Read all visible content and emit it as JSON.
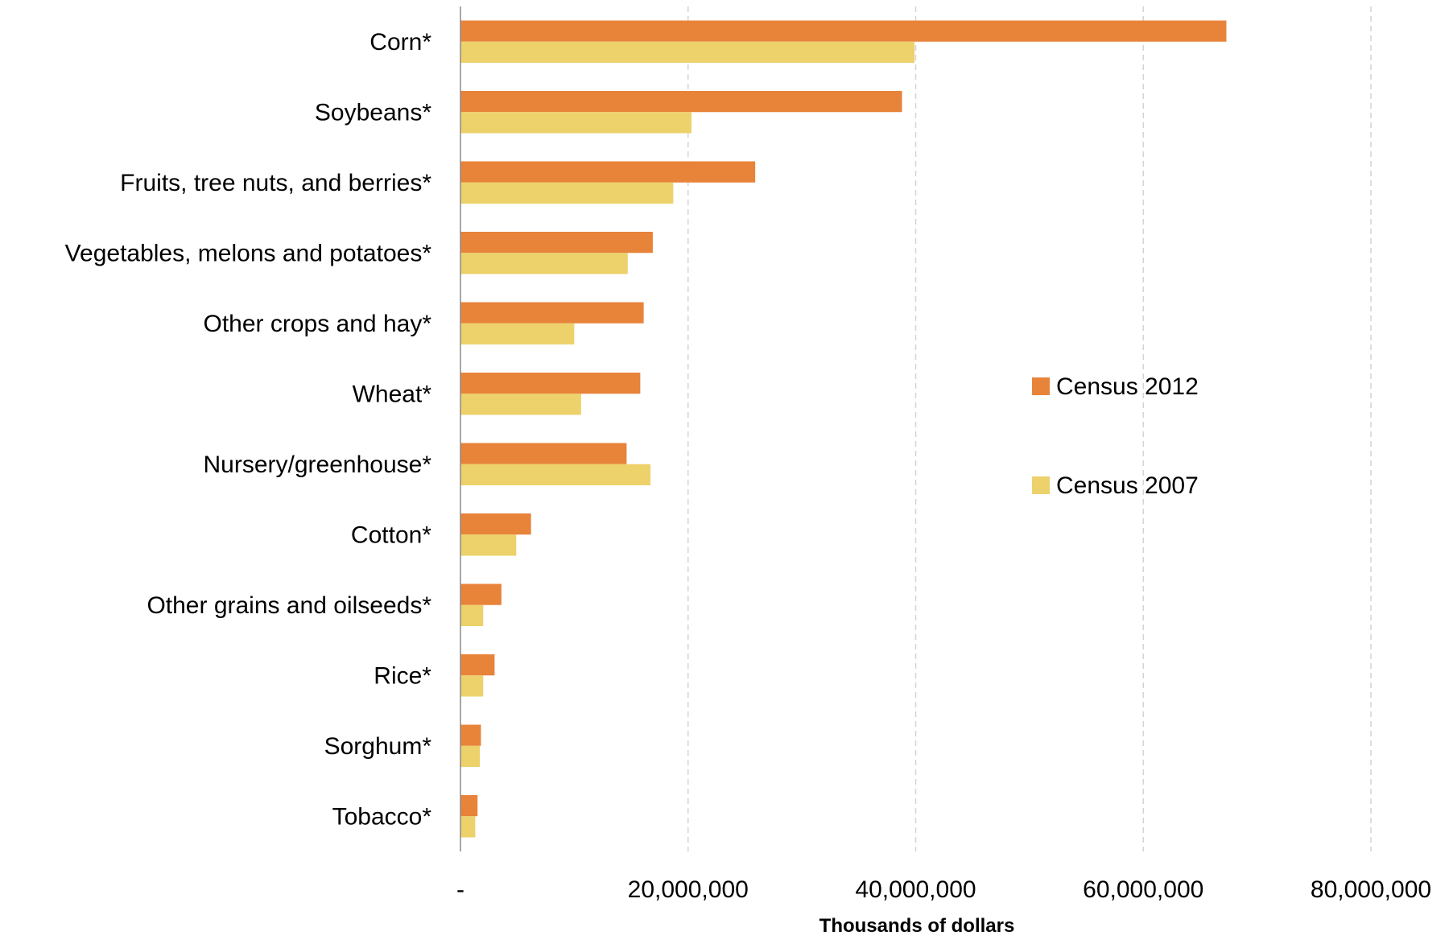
{
  "chart_data": {
    "type": "bar",
    "orientation": "horizontal",
    "categories": [
      "Corn*",
      "Soybeans*",
      "Fruits, tree nuts, and berries*",
      "Vegetables, melons and potatoes*",
      "Other crops and hay*",
      "Wheat*",
      "Nursery/greenhouse*",
      "Cotton*",
      "Other grains and oilseeds*",
      "Rice*",
      "Sorghum*",
      "Tobacco*"
    ],
    "series": [
      {
        "name": "Census 2012",
        "color": "#E8833A",
        "values": [
          67300000,
          38800000,
          25900000,
          16900000,
          16100000,
          15800000,
          14600000,
          6200000,
          3600000,
          3000000,
          1800000,
          1500000
        ]
      },
      {
        "name": "Census 2007",
        "color": "#EDD16B",
        "values": [
          39900000,
          20300000,
          18700000,
          14700000,
          10000000,
          10600000,
          16700000,
          4900000,
          2000000,
          2000000,
          1700000,
          1300000
        ]
      }
    ],
    "xlabel": "Thousands of dollars",
    "xlim": [
      0,
      80000000
    ],
    "xticks": [
      0,
      20000000,
      40000000,
      60000000,
      80000000
    ],
    "xtick_labels": [
      "-",
      "20,000,000",
      "40,000,000",
      "60,000,000",
      "80,000,000"
    ],
    "grid": "vertical-dashed",
    "legend": "right"
  }
}
